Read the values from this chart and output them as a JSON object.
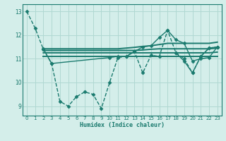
{
  "background_color": "#d4eeea",
  "grid_color": "#b0d8d2",
  "line_color": "#1a7a6e",
  "xlabel": "Humidex (Indice chaleur)",
  "xlim": [
    -0.5,
    23.5
  ],
  "ylim": [
    8.6,
    13.3
  ],
  "yticks": [
    9,
    10,
    11,
    12,
    13
  ],
  "xticks": [
    0,
    1,
    2,
    3,
    4,
    5,
    6,
    7,
    8,
    9,
    10,
    11,
    12,
    13,
    14,
    15,
    16,
    17,
    18,
    19,
    20,
    21,
    22,
    23
  ],
  "series": [
    {
      "x": [
        0,
        1,
        2,
        3,
        4,
        5,
        6,
        7,
        8,
        9,
        10,
        11,
        12,
        13,
        14,
        15,
        16,
        17,
        18,
        19,
        20,
        21,
        22,
        23
      ],
      "y": [
        13.0,
        12.3,
        11.4,
        10.8,
        9.2,
        9.0,
        9.4,
        9.6,
        9.5,
        8.9,
        10.0,
        11.05,
        11.1,
        11.3,
        10.4,
        11.15,
        11.1,
        12.2,
        11.25,
        11.0,
        10.4,
        11.1,
        11.45,
        11.5
      ],
      "marker": "D",
      "markersize": 2.5,
      "linewidth": 1.0,
      "linestyle": "--"
    },
    {
      "x": [
        2,
        3,
        4,
        5,
        6,
        7,
        8,
        9,
        10,
        11,
        12,
        13,
        14,
        15,
        16,
        17,
        18,
        19,
        20,
        21,
        22,
        23
      ],
      "y": [
        11.42,
        11.42,
        11.42,
        11.42,
        11.42,
        11.42,
        11.42,
        11.42,
        11.42,
        11.42,
        11.45,
        11.48,
        11.52,
        11.55,
        11.6,
        11.65,
        11.65,
        11.65,
        11.65,
        11.65,
        11.65,
        11.7
      ],
      "marker": null,
      "markersize": 0,
      "linewidth": 1.4,
      "linestyle": "-"
    },
    {
      "x": [
        2,
        3,
        4,
        5,
        6,
        7,
        8,
        9,
        10,
        11,
        12,
        13,
        14,
        15,
        16,
        17,
        18,
        19,
        20,
        21,
        22,
        23
      ],
      "y": [
        11.35,
        11.35,
        11.35,
        11.35,
        11.35,
        11.35,
        11.35,
        11.35,
        11.35,
        11.35,
        11.35,
        11.35,
        11.37,
        11.4,
        11.42,
        11.42,
        11.42,
        11.42,
        11.42,
        11.42,
        11.42,
        11.45
      ],
      "marker": null,
      "markersize": 0,
      "linewidth": 1.4,
      "linestyle": "-"
    },
    {
      "x": [
        2,
        3,
        4,
        5,
        6,
        7,
        8,
        9,
        10,
        11,
        12,
        13,
        14,
        15,
        16,
        17,
        18,
        19,
        20,
        21,
        22,
        23
      ],
      "y": [
        11.25,
        11.25,
        11.25,
        11.25,
        11.25,
        11.25,
        11.25,
        11.25,
        11.25,
        11.25,
        11.25,
        11.25,
        11.25,
        11.25,
        11.25,
        11.25,
        11.25,
        11.25,
        11.25,
        11.25,
        11.25,
        11.28
      ],
      "marker": null,
      "markersize": 0,
      "linewidth": 1.4,
      "linestyle": "-"
    },
    {
      "x": [
        2,
        3,
        4,
        5,
        6,
        7,
        8,
        9,
        10,
        11,
        12,
        13,
        14,
        15,
        16,
        17,
        18,
        19,
        20,
        21,
        22,
        23
      ],
      "y": [
        11.1,
        11.1,
        11.1,
        11.1,
        11.1,
        11.1,
        11.1,
        11.1,
        11.1,
        11.1,
        11.1,
        11.1,
        11.1,
        11.1,
        11.1,
        11.1,
        11.1,
        11.1,
        11.1,
        11.1,
        11.1,
        11.1
      ],
      "marker": null,
      "markersize": 0,
      "linewidth": 1.4,
      "linestyle": "-"
    },
    {
      "x": [
        2,
        3,
        10,
        11,
        12,
        13,
        14,
        15,
        16,
        17,
        18,
        19,
        20,
        21,
        22,
        23
      ],
      "y": [
        11.42,
        10.8,
        11.05,
        11.1,
        11.1,
        11.3,
        11.5,
        11.55,
        11.9,
        12.2,
        11.8,
        11.65,
        10.9,
        11.0,
        11.05,
        11.5
      ],
      "marker": "D",
      "markersize": 2.5,
      "linewidth": 1.0,
      "linestyle": "-"
    },
    {
      "x": [
        18,
        19,
        20,
        21,
        22,
        23
      ],
      "y": [
        11.25,
        10.9,
        10.4,
        11.1,
        11.45,
        11.5
      ],
      "marker": "D",
      "markersize": 2.5,
      "linewidth": 1.0,
      "linestyle": "-"
    }
  ]
}
